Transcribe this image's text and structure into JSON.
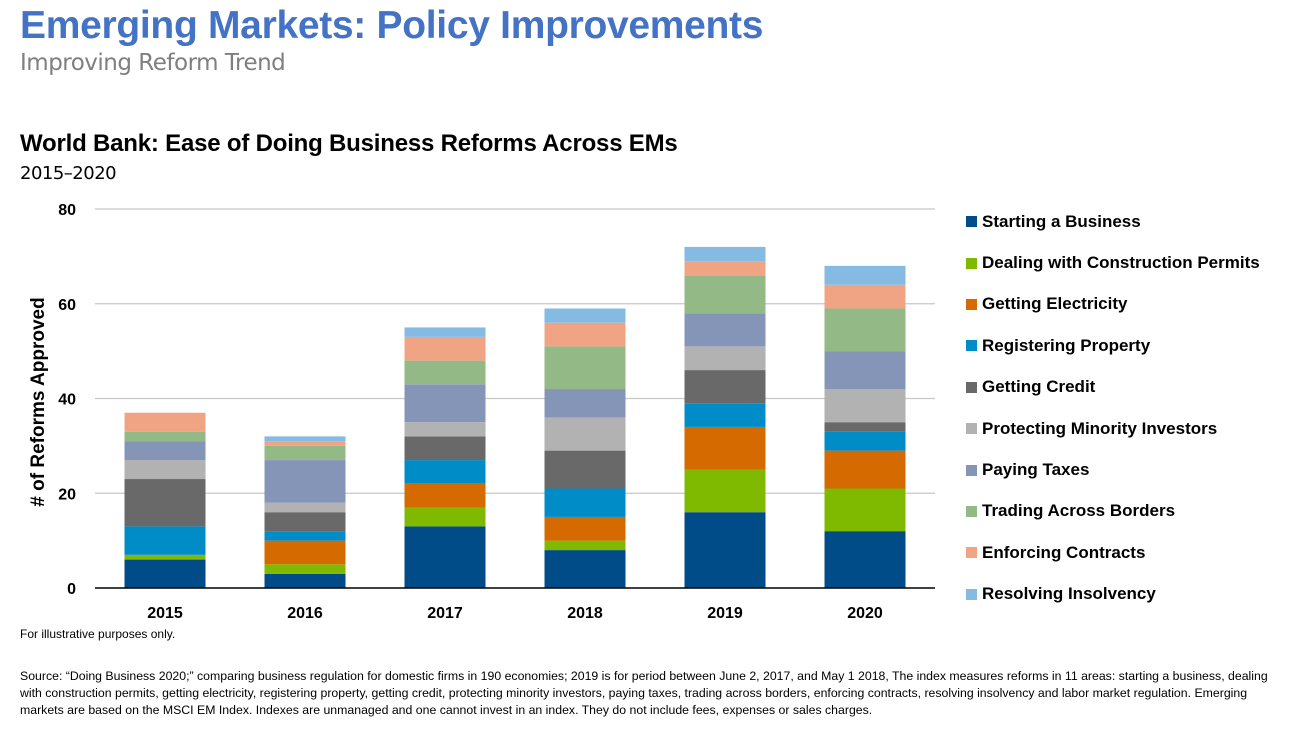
{
  "header": {
    "title": "Emerging Markets: Policy Improvements",
    "subtitle": "Improving Reform Trend"
  },
  "chart_data": {
    "type": "bar",
    "stacked": true,
    "title": "World Bank: Ease of Doing Business Reforms Across EMs",
    "subtitle": "2015–2020",
    "xlabel": "",
    "ylabel": "# of Reforms Approved",
    "ylim": [
      0,
      80
    ],
    "yticks": [
      0,
      20,
      40,
      60,
      80
    ],
    "grid": true,
    "legend_position": "right",
    "categories": [
      "2015",
      "2016",
      "2017",
      "2018",
      "2019",
      "2020"
    ],
    "series": [
      {
        "name": "Starting a Business",
        "color": "#004C88",
        "values": [
          6,
          3,
          13,
          8,
          16,
          12
        ]
      },
      {
        "name": "Dealing with Construction Permits",
        "color": "#7FBA00",
        "values": [
          1,
          2,
          4,
          2,
          9,
          9
        ]
      },
      {
        "name": "Getting Electricity",
        "color": "#D46A00",
        "values": [
          0,
          5,
          5,
          5,
          9,
          8
        ]
      },
      {
        "name": "Registering Property",
        "color": "#008CC6",
        "values": [
          6,
          2,
          5,
          6,
          5,
          4
        ]
      },
      {
        "name": "Getting Credit",
        "color": "#696969",
        "values": [
          10,
          4,
          5,
          8,
          7,
          2
        ]
      },
      {
        "name": "Protecting Minority Investors",
        "color": "#B2B2B2",
        "values": [
          4,
          2,
          3,
          7,
          5,
          7
        ]
      },
      {
        "name": "Paying Taxes",
        "color": "#8595B8",
        "values": [
          4,
          9,
          8,
          6,
          7,
          8
        ]
      },
      {
        "name": "Trading Across Borders",
        "color": "#93B986",
        "values": [
          2,
          3,
          5,
          9,
          8,
          9
        ]
      },
      {
        "name": "Enforcing Contracts",
        "color": "#F0A484",
        "values": [
          4,
          1,
          5,
          5,
          3,
          5
        ]
      },
      {
        "name": "Resolving Insolvency",
        "color": "#85BBE3",
        "values": [
          0,
          1,
          2,
          3,
          3,
          4
        ]
      }
    ],
    "totals": [
      37,
      32,
      55,
      59,
      72,
      68
    ]
  },
  "footer": {
    "note": "For illustrative purposes only.",
    "source": "Source: “Doing Business 2020;” comparing business regulation for domestic firms in 190 economies;  2019 is for period between June 2, 2017, and May 1 2018, The index measures reforms in 11 areas: starting a business, dealing with construction permits, getting electricity, registering property, getting credit, protecting minority investors, paying taxes, trading across borders, enforcing contracts, resolving insolvency and labor market regulation. Emerging markets are based on the MSCI EM Index. Indexes are unmanaged and one cannot invest in an index. They do not include fees, expenses or sales charges."
  }
}
